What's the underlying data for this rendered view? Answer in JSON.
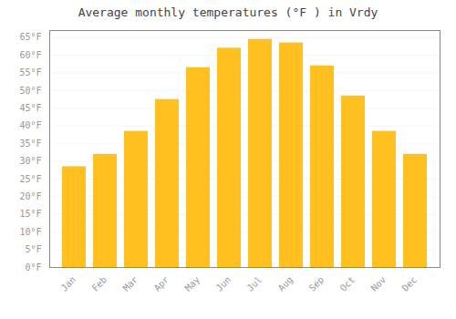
{
  "chart_data": {
    "type": "bar",
    "title": "Average monthly temperatures (°F ) in Vrdy",
    "categories": [
      "Jan",
      "Feb",
      "Mar",
      "Apr",
      "May",
      "Jun",
      "Jul",
      "Aug",
      "Sep",
      "Oct",
      "Nov",
      "Dec"
    ],
    "values": [
      28.5,
      32.0,
      38.5,
      47.5,
      56.5,
      62.0,
      64.5,
      63.5,
      57.0,
      48.5,
      38.5,
      32.0
    ],
    "color": "#FFC020",
    "ylim": [
      0,
      67
    ],
    "yticks": [
      {
        "value": 0,
        "label": "0°F"
      },
      {
        "value": 5,
        "label": "5°F"
      },
      {
        "value": 10,
        "label": "10°F"
      },
      {
        "value": 15,
        "label": "15°F"
      },
      {
        "value": 20,
        "label": "20°F"
      },
      {
        "value": 25,
        "label": "25°F"
      },
      {
        "value": 30,
        "label": "30°F"
      },
      {
        "value": 35,
        "label": "35°F"
      },
      {
        "value": 40,
        "label": "40°F"
      },
      {
        "value": 45,
        "label": "45°F"
      },
      {
        "value": 50,
        "label": "50°F"
      },
      {
        "value": 55,
        "label": "55°F"
      },
      {
        "value": 60,
        "label": "60°F"
      },
      {
        "value": 65,
        "label": "65°F"
      }
    ],
    "grid": true
  }
}
